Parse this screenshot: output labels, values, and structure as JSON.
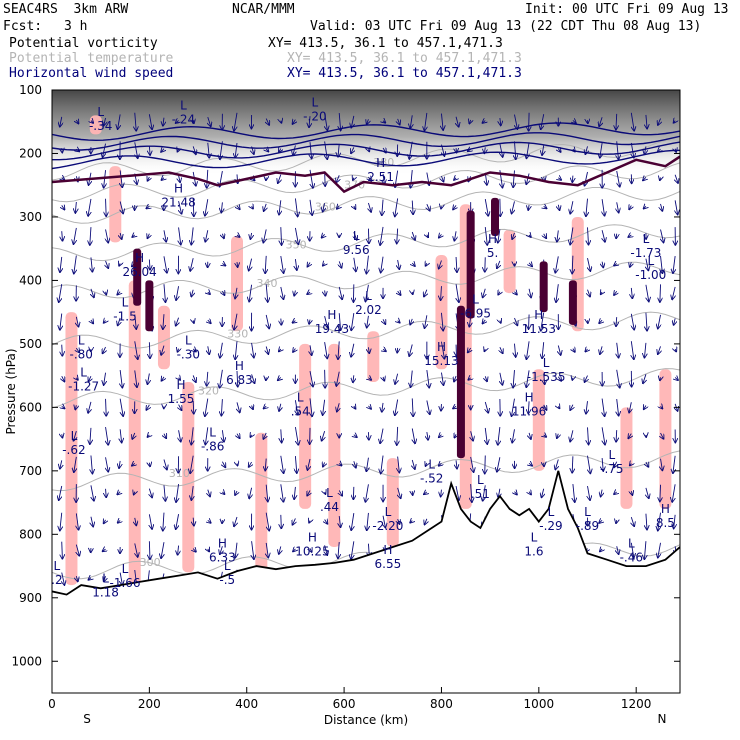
{
  "header": {
    "model": "SEAC4RS  3km ARW",
    "center": "NCAR/MMM",
    "init": "Init: 00 UTC Fri 09 Aug 13",
    "fcst_label": "Fcst:",
    "fcst_value": "3 h",
    "valid": "Valid: 03 UTC Fri 09 Aug 13 (22 CDT Thu 08 Aug 13)"
  },
  "legend": [
    {
      "label": "Potential vorticity",
      "xy": "XY= 413.5, 36.1 to 457.1,471.3",
      "color": "#000000"
    },
    {
      "label": "Potential temperature",
      "xy": "XY= 413.5, 36.1 to 457.1,471.3",
      "color": "#b4b4b4"
    },
    {
      "label": "Horizontal wind speed",
      "xy": "XY= 413.5, 36.1 to 457.1,471.3",
      "color": "#00007a"
    }
  ],
  "colors": {
    "pv_positive": "#ffb4b4",
    "pv_contour": "#4a0033",
    "theta": "#b4b4b4",
    "wind": "#0a0a78",
    "terrain": "#000000",
    "stratosphere": "#3c3c3c"
  },
  "chart_data": {
    "type": "cross-section",
    "xlabel": "Distance (km)",
    "ylabel": "Pressure (hPa)",
    "xlim": [
      0,
      1290
    ],
    "ylim": [
      1050,
      100
    ],
    "x_ticks": [
      "0",
      "200",
      "400",
      "600",
      "800",
      "1000",
      "1200"
    ],
    "y_ticks": [
      "100",
      "200",
      "300",
      "400",
      "500",
      "600",
      "700",
      "800",
      "900",
      "1000"
    ],
    "endpoints": {
      "left": "S",
      "right": "N"
    },
    "terrain_surface": {
      "x_km": [
        0,
        30,
        60,
        100,
        140,
        180,
        220,
        260,
        300,
        340,
        380,
        420,
        460,
        500,
        540,
        580,
        620,
        660,
        700,
        740,
        780,
        800,
        820,
        840,
        860,
        880,
        900,
        920,
        940,
        960,
        980,
        1000,
        1020,
        1040,
        1060,
        1080,
        1100,
        1140,
        1180,
        1220,
        1260,
        1290
      ],
      "p_hpa": [
        890,
        895,
        880,
        885,
        880,
        875,
        870,
        865,
        860,
        870,
        858,
        850,
        855,
        850,
        848,
        845,
        840,
        830,
        820,
        810,
        790,
        780,
        720,
        760,
        780,
        790,
        760,
        740,
        760,
        770,
        760,
        780,
        760,
        700,
        760,
        790,
        830,
        840,
        850,
        850,
        840,
        820
      ]
    },
    "tropopause_pv_contour": {
      "x_km": [
        0,
        80,
        160,
        240,
        300,
        340,
        400,
        460,
        520,
        560,
        600,
        640,
        700,
        760,
        820,
        860,
        900,
        960,
        1020,
        1080,
        1140,
        1200,
        1260,
        1290
      ],
      "p_hpa": [
        245,
        240,
        235,
        230,
        240,
        250,
        240,
        230,
        235,
        230,
        260,
        245,
        250,
        245,
        250,
        240,
        230,
        235,
        245,
        250,
        230,
        210,
        220,
        205
      ]
    },
    "theta_contours": [
      {
        "label": "300",
        "p_hpa_left": 860
      },
      {
        "label": "310",
        "p_hpa_left": 720
      },
      {
        "label": "320",
        "p_hpa_left": 590
      },
      {
        "label": "330",
        "p_hpa_left": 500
      },
      {
        "label": "340",
        "p_hpa_left": 420
      },
      {
        "label": "350",
        "p_hpa_left": 360
      },
      {
        "label": "360",
        "p_hpa_left": 300
      },
      {
        "label": "370",
        "p_hpa_left": 265
      },
      {
        "label": "380",
        "p_hpa_left": 230
      }
    ],
    "wind_speed_contours": [
      {
        "p_hpa_left": 170,
        "p_hpa_right": 160
      },
      {
        "p_hpa_left": 185,
        "p_hpa_right": 175
      },
      {
        "p_hpa_left": 200,
        "p_hpa_right": 190
      },
      {
        "p_hpa_left": 215,
        "p_hpa_right": 205
      }
    ],
    "pv_positive_regions": [
      {
        "x_km": 40,
        "p_top": 450,
        "p_bot": 880
      },
      {
        "x_km": 90,
        "p_top": 140,
        "p_bot": 170
      },
      {
        "x_km": 130,
        "p_top": 220,
        "p_bot": 340
      },
      {
        "x_km": 170,
        "p_top": 400,
        "p_bot": 880
      },
      {
        "x_km": 230,
        "p_top": 440,
        "p_bot": 540
      },
      {
        "x_km": 280,
        "p_top": 560,
        "p_bot": 860
      },
      {
        "x_km": 380,
        "p_top": 330,
        "p_bot": 480
      },
      {
        "x_km": 430,
        "p_top": 640,
        "p_bot": 880
      },
      {
        "x_km": 520,
        "p_top": 500,
        "p_bot": 760
      },
      {
        "x_km": 580,
        "p_top": 500,
        "p_bot": 820
      },
      {
        "x_km": 660,
        "p_top": 480,
        "p_bot": 560
      },
      {
        "x_km": 700,
        "p_top": 680,
        "p_bot": 820
      },
      {
        "x_km": 800,
        "p_top": 360,
        "p_bot": 540
      },
      {
        "x_km": 850,
        "p_top": 280,
        "p_bot": 760
      },
      {
        "x_km": 940,
        "p_top": 320,
        "p_bot": 420
      },
      {
        "x_km": 1000,
        "p_top": 540,
        "p_bot": 700
      },
      {
        "x_km": 1080,
        "p_top": 300,
        "p_bot": 480
      },
      {
        "x_km": 1180,
        "p_top": 600,
        "p_bot": 760
      },
      {
        "x_km": 1260,
        "p_top": 540,
        "p_bot": 760
      }
    ],
    "pv_dark_cores": [
      {
        "x_km": 175,
        "p_top": 350,
        "p_bot": 440
      },
      {
        "x_km": 200,
        "p_top": 400,
        "p_bot": 480
      },
      {
        "x_km": 840,
        "p_top": 440,
        "p_bot": 680
      },
      {
        "x_km": 860,
        "p_top": 290,
        "p_bot": 460
      },
      {
        "x_km": 910,
        "p_top": 270,
        "p_bot": 330
      },
      {
        "x_km": 1010,
        "p_top": 370,
        "p_bot": 450
      },
      {
        "x_km": 1070,
        "p_top": 400,
        "p_bot": 470
      }
    ],
    "extrema_labels": [
      {
        "kind": "L",
        "value": "-.34",
        "x_km": 100,
        "p_hpa": 160
      },
      {
        "kind": "L",
        "value": "-.24",
        "x_km": 270,
        "p_hpa": 150
      },
      {
        "kind": "H",
        "value": "21.48",
        "x_km": 260,
        "p_hpa": 280
      },
      {
        "kind": "H",
        "value": "26.04",
        "x_km": 180,
        "p_hpa": 390
      },
      {
        "kind": "L",
        "value": "-1.5",
        "x_km": 150,
        "p_hpa": 460
      },
      {
        "kind": "L",
        "value": "-.80",
        "x_km": 60,
        "p_hpa": 520
      },
      {
        "kind": "L",
        "value": "-1.27",
        "x_km": 65,
        "p_hpa": 570
      },
      {
        "kind": "L",
        "value": "-.30",
        "x_km": 280,
        "p_hpa": 520
      },
      {
        "kind": "H",
        "value": "1.55",
        "x_km": 265,
        "p_hpa": 590
      },
      {
        "kind": "H",
        "value": "6.83",
        "x_km": 385,
        "p_hpa": 560
      },
      {
        "kind": "L",
        "value": "-.62",
        "x_km": 45,
        "p_hpa": 670
      },
      {
        "kind": "L",
        "value": "-.86",
        "x_km": 330,
        "p_hpa": 665
      },
      {
        "kind": "L",
        "value": ".54",
        "x_km": 510,
        "p_hpa": 610
      },
      {
        "kind": "L",
        "value": "9.56",
        "x_km": 625,
        "p_hpa": 355
      },
      {
        "kind": "L",
        "value": "2.02",
        "x_km": 650,
        "p_hpa": 450
      },
      {
        "kind": "H",
        "value": "19.43",
        "x_km": 575,
        "p_hpa": 480
      },
      {
        "kind": "H",
        "value": "2.51",
        "x_km": 675,
        "p_hpa": 240
      },
      {
        "kind": "L",
        "value": "-.20",
        "x_km": 540,
        "p_hpa": 145
      },
      {
        "kind": "H",
        "value": "15.13",
        "x_km": 800,
        "p_hpa": 530
      },
      {
        "kind": "L",
        "value": "-6.95",
        "x_km": 870,
        "p_hpa": 455
      },
      {
        "kind": "H",
        "value": "5.",
        "x_km": 905,
        "p_hpa": 360
      },
      {
        "kind": "H",
        "value": "11.53",
        "x_km": 1000,
        "p_hpa": 480
      },
      {
        "kind": "L",
        "value": "-1.535",
        "x_km": 1015,
        "p_hpa": 555
      },
      {
        "kind": "H",
        "value": "11.96",
        "x_km": 980,
        "p_hpa": 610
      },
      {
        "kind": "L",
        "value": "-1.73",
        "x_km": 1220,
        "p_hpa": 360
      },
      {
        "kind": "L",
        "value": "-1.00",
        "x_km": 1230,
        "p_hpa": 395
      },
      {
        "kind": "L",
        "value": "-.52",
        "x_km": 780,
        "p_hpa": 715
      },
      {
        "kind": "L",
        "value": ".51",
        "x_km": 880,
        "p_hpa": 740
      },
      {
        "kind": "L",
        "value": "-.75",
        "x_km": 1150,
        "p_hpa": 700
      },
      {
        "kind": "H",
        "value": "8.5",
        "x_km": 1260,
        "p_hpa": 785
      },
      {
        "kind": "L",
        "value": ".44",
        "x_km": 570,
        "p_hpa": 760
      },
      {
        "kind": "L",
        "value": "-2.20",
        "x_km": 690,
        "p_hpa": 790
      },
      {
        "kind": "L",
        "value": "-.29",
        "x_km": 1025,
        "p_hpa": 790
      },
      {
        "kind": "L",
        "value": "-.89",
        "x_km": 1100,
        "p_hpa": 790
      },
      {
        "kind": "H",
        "value": "6.33",
        "x_km": 350,
        "p_hpa": 840
      },
      {
        "kind": "H",
        "value": "10.25",
        "x_km": 535,
        "p_hpa": 830
      },
      {
        "kind": "H",
        "value": "6.55",
        "x_km": 690,
        "p_hpa": 850
      },
      {
        "kind": "L",
        "value": "1.6",
        "x_km": 990,
        "p_hpa": 830
      },
      {
        "kind": "L",
        "value": "-.46",
        "x_km": 1190,
        "p_hpa": 840
      },
      {
        "kind": "L",
        "value": "1.18",
        "x_km": 110,
        "p_hpa": 895
      },
      {
        "kind": "L",
        "value": "-1.66",
        "x_km": 150,
        "p_hpa": 880
      },
      {
        "kind": "L",
        "value": "-.5",
        "x_km": 360,
        "p_hpa": 875
      },
      {
        "kind": "L",
        "value": ".2",
        "x_km": 10,
        "p_hpa": 875
      }
    ]
  }
}
